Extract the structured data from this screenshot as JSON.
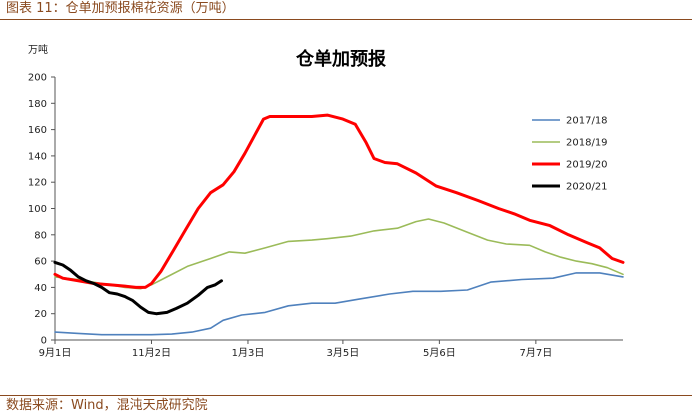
{
  "caption": "图表 11：仓单加预报棉花资源（万吨）",
  "source": "数据来源：Wind，混沌天成研究院",
  "chart_data": {
    "type": "line",
    "title": "仓单加预报",
    "yunit": "万吨",
    "ylim": [
      0,
      200
    ],
    "yticks": [
      "0",
      "20",
      "40",
      "60",
      "80",
      "100",
      "120",
      "140",
      "160",
      "180",
      "200"
    ],
    "xlim": [
      0,
      365
    ],
    "xticks": [
      {
        "label": "9月1日",
        "day": 0
      },
      {
        "label": "11月2日",
        "day": 62
      },
      {
        "label": "1月3日",
        "day": 124
      },
      {
        "label": "3月5日",
        "day": 185
      },
      {
        "label": "5月6日",
        "day": 247
      },
      {
        "label": "7月7日",
        "day": 309
      }
    ],
    "legend_position": "right",
    "grid": false,
    "series": [
      {
        "name": "2017/18",
        "color": "#4f81bd",
        "points": [
          [
            0,
            6
          ],
          [
            15,
            5
          ],
          [
            30,
            4
          ],
          [
            45,
            4
          ],
          [
            62,
            4
          ],
          [
            75,
            4.5
          ],
          [
            88,
            6
          ],
          [
            100,
            9
          ],
          [
            108,
            15
          ],
          [
            120,
            19
          ],
          [
            135,
            21
          ],
          [
            150,
            26
          ],
          [
            165,
            28
          ],
          [
            180,
            28
          ],
          [
            195,
            31
          ],
          [
            215,
            35
          ],
          [
            230,
            37
          ],
          [
            248,
            37
          ],
          [
            265,
            38
          ],
          [
            280,
            44
          ],
          [
            300,
            46
          ],
          [
            320,
            47
          ],
          [
            335,
            51
          ],
          [
            350,
            51
          ],
          [
            365,
            48
          ]
        ]
      },
      {
        "name": "2018/19",
        "color": "#9bbb59",
        "points": [
          [
            0,
            48
          ],
          [
            15,
            46
          ],
          [
            30,
            43
          ],
          [
            45,
            40
          ],
          [
            55,
            39
          ],
          [
            62,
            42
          ],
          [
            72,
            48
          ],
          [
            85,
            56
          ],
          [
            100,
            62
          ],
          [
            112,
            67
          ],
          [
            122,
            66
          ],
          [
            135,
            70
          ],
          [
            150,
            75
          ],
          [
            165,
            76
          ],
          [
            175,
            77
          ],
          [
            190,
            79
          ],
          [
            205,
            83
          ],
          [
            220,
            85
          ],
          [
            232,
            90
          ],
          [
            240,
            92
          ],
          [
            250,
            89
          ],
          [
            265,
            82
          ],
          [
            278,
            76
          ],
          [
            290,
            73
          ],
          [
            305,
            72
          ],
          [
            315,
            67
          ],
          [
            325,
            63
          ],
          [
            335,
            60
          ],
          [
            345,
            58
          ],
          [
            355,
            55
          ],
          [
            365,
            50
          ]
        ]
      },
      {
        "name": "2019/20",
        "color": "#ff0000",
        "points": [
          [
            0,
            50
          ],
          [
            5,
            47
          ],
          [
            15,
            45
          ],
          [
            25,
            43
          ],
          [
            35,
            42
          ],
          [
            45,
            41
          ],
          [
            52,
            40
          ],
          [
            58,
            40
          ],
          [
            62,
            43
          ],
          [
            68,
            52
          ],
          [
            76,
            68
          ],
          [
            84,
            84
          ],
          [
            92,
            100
          ],
          [
            100,
            112
          ],
          [
            108,
            118
          ],
          [
            115,
            128
          ],
          [
            122,
            142
          ],
          [
            128,
            155
          ],
          [
            134,
            168
          ],
          [
            138,
            170
          ],
          [
            150,
            170
          ],
          [
            165,
            170
          ],
          [
            175,
            171
          ],
          [
            185,
            168
          ],
          [
            193,
            164
          ],
          [
            200,
            150
          ],
          [
            205,
            138
          ],
          [
            212,
            135
          ],
          [
            220,
            134
          ],
          [
            232,
            127
          ],
          [
            245,
            117
          ],
          [
            258,
            112
          ],
          [
            272,
            106
          ],
          [
            285,
            100
          ],
          [
            295,
            96
          ],
          [
            305,
            91
          ],
          [
            318,
            87
          ],
          [
            330,
            80
          ],
          [
            342,
            74
          ],
          [
            350,
            70
          ],
          [
            358,
            62
          ],
          [
            365,
            59
          ]
        ]
      },
      {
        "name": "2020/21",
        "color": "#000000",
        "points": [
          [
            0,
            59
          ],
          [
            5,
            57
          ],
          [
            10,
            53
          ],
          [
            15,
            48
          ],
          [
            20,
            45
          ],
          [
            25,
            43
          ],
          [
            30,
            40
          ],
          [
            35,
            36
          ],
          [
            40,
            35
          ],
          [
            45,
            33
          ],
          [
            50,
            30
          ],
          [
            55,
            25
          ],
          [
            60,
            21
          ],
          [
            65,
            20
          ],
          [
            72,
            21
          ],
          [
            78,
            24
          ],
          [
            85,
            28
          ],
          [
            92,
            34
          ],
          [
            98,
            40
          ],
          [
            103,
            42
          ],
          [
            107,
            45
          ]
        ]
      }
    ]
  }
}
